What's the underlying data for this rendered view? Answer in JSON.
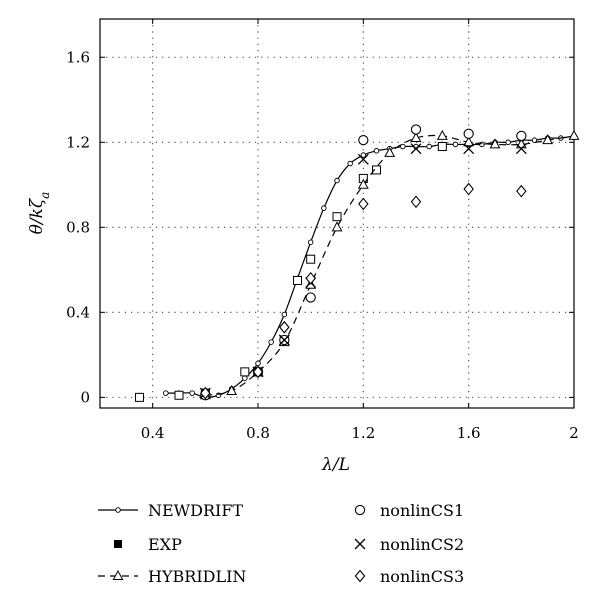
{
  "chart_data": {
    "type": "line",
    "xlabel": "λ/L",
    "ylabel": "θ/kζa",
    "xlim": [
      0.2,
      2.0
    ],
    "ylim": [
      -0.05,
      1.78
    ],
    "xticks": [
      0.4,
      0.8,
      1.2,
      1.6,
      2.0
    ],
    "xtick_labels": [
      "0.4",
      "0.8",
      "1.2",
      "1.6",
      "2"
    ],
    "yticks": [
      0,
      0.4,
      0.8,
      1.2,
      1.6
    ],
    "ytick_labels": [
      "0",
      "0.4",
      "0.8",
      "1.2",
      "1.6"
    ],
    "grid": true,
    "legend_position": "below",
    "series": [
      {
        "name": "NEWDRIFT",
        "style": "solid line, small open circles",
        "x": [
          0.45,
          0.5,
          0.55,
          0.6,
          0.65,
          0.7,
          0.75,
          0.8,
          0.85,
          0.9,
          0.95,
          1.0,
          1.05,
          1.1,
          1.15,
          1.2,
          1.25,
          1.3,
          1.35,
          1.4,
          1.45,
          1.5,
          1.55,
          1.6,
          1.65,
          1.7,
          1.75,
          1.8,
          1.85,
          1.9,
          1.95,
          2.0
        ],
        "y": [
          0.02,
          0.02,
          0.02,
          0.0,
          0.01,
          0.04,
          0.09,
          0.16,
          0.26,
          0.39,
          0.56,
          0.73,
          0.89,
          1.02,
          1.1,
          1.14,
          1.16,
          1.17,
          1.18,
          1.18,
          1.18,
          1.19,
          1.19,
          1.19,
          1.19,
          1.2,
          1.2,
          1.21,
          1.21,
          1.22,
          1.22,
          1.23
        ]
      },
      {
        "name": "EXP",
        "style": "open squares",
        "x": [
          0.35,
          0.5,
          0.6,
          0.75,
          0.8,
          0.9,
          0.95,
          1.0,
          1.1,
          1.2,
          1.25,
          1.5
        ],
        "y": [
          0.0,
          0.01,
          0.02,
          0.12,
          0.12,
          0.27,
          0.55,
          0.65,
          0.85,
          1.03,
          1.07,
          1.18
        ]
      },
      {
        "name": "HYBRIDLIN",
        "style": "dashed line, open triangles",
        "x": [
          0.6,
          0.7,
          0.8,
          0.9,
          1.0,
          1.1,
          1.2,
          1.3,
          1.4,
          1.5,
          1.6,
          1.7,
          1.8,
          1.9,
          2.0
        ],
        "y": [
          0.01,
          0.03,
          0.12,
          0.26,
          0.53,
          0.8,
          1.0,
          1.15,
          1.22,
          1.23,
          1.2,
          1.19,
          1.19,
          1.21,
          1.23
        ]
      },
      {
        "name": "nonlinCS1",
        "style": "large open circles",
        "x": [
          0.6,
          0.8,
          0.9,
          1.0,
          1.2,
          1.4,
          1.6,
          1.8
        ],
        "y": [
          0.01,
          0.12,
          0.27,
          0.47,
          1.21,
          1.26,
          1.24,
          1.23
        ]
      },
      {
        "name": "nonlinCS2",
        "style": "crosses",
        "x": [
          0.6,
          0.8,
          0.9,
          1.0,
          1.2,
          1.4,
          1.6,
          1.8
        ],
        "y": [
          0.02,
          0.12,
          0.27,
          0.54,
          1.12,
          1.17,
          1.17,
          1.17
        ]
      },
      {
        "name": "nonlinCS3",
        "style": "open diamonds",
        "x": [
          0.6,
          0.8,
          0.9,
          1.0,
          1.2,
          1.4,
          1.6,
          1.8
        ],
        "y": [
          0.02,
          0.12,
          0.33,
          0.56,
          0.91,
          0.92,
          0.98,
          0.97
        ]
      }
    ]
  }
}
